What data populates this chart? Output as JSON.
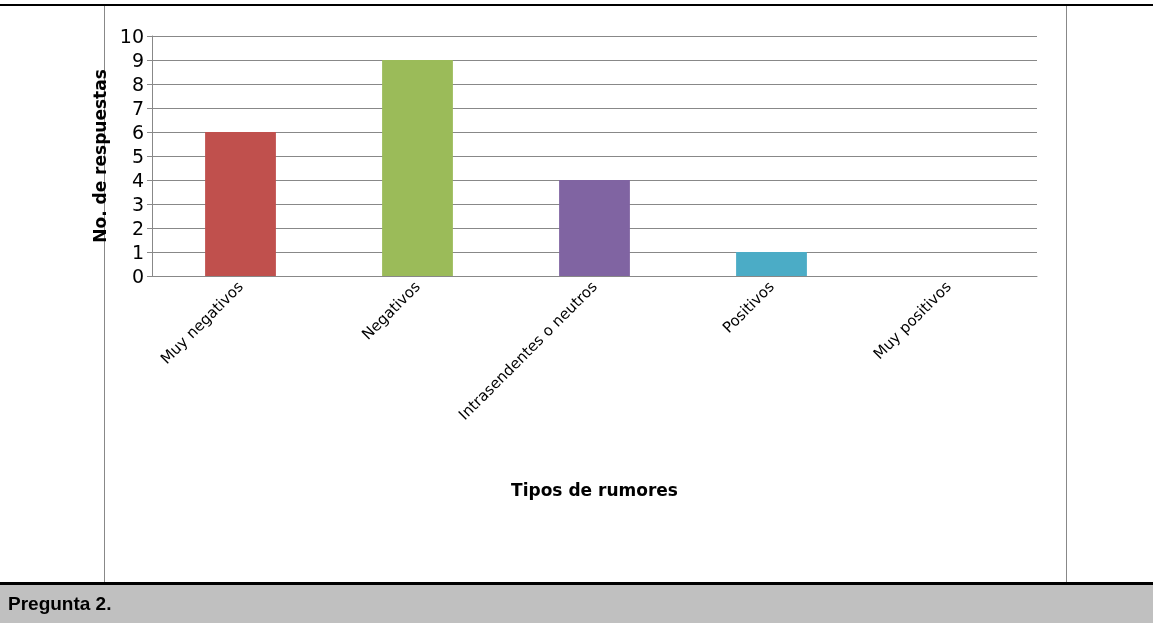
{
  "chart_data": {
    "type": "bar",
    "xlabel": "Tipos de rumores",
    "ylabel": "No. de respuestas",
    "categories": [
      "Muy negativos",
      "Negativos",
      "Intrasendentes o neutros",
      "Positivos",
      "Muy positivos"
    ],
    "values": [
      6,
      9,
      4,
      1,
      0
    ],
    "colors": [
      "#c0504d",
      "#9bbb59",
      "#8064a2",
      "#4bacc6",
      "#f79646"
    ],
    "ylim": [
      0,
      10
    ],
    "yticks": [
      0,
      1,
      2,
      3,
      4,
      5,
      6,
      7,
      8,
      9,
      10
    ],
    "grid": "y",
    "annotations": [
      "Pregunta 2."
    ]
  }
}
